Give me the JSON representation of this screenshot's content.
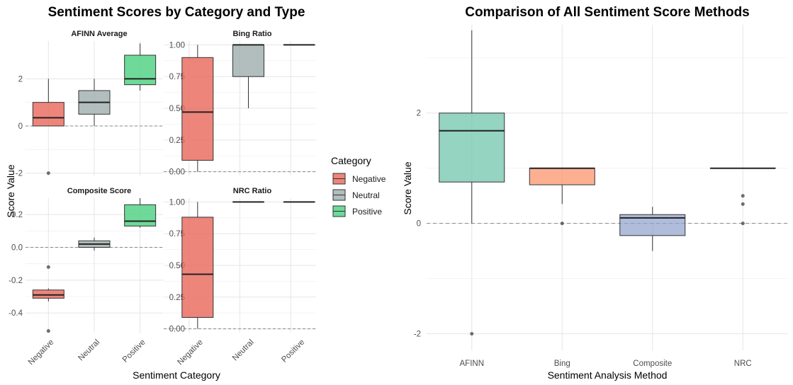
{
  "chart_data": [
    {
      "type": "boxplot",
      "title": "Sentiment Scores by Category and Type",
      "xlabel": "Sentiment Category",
      "ylabel": "Score Value",
      "legend": {
        "title": "Category",
        "placement": "right",
        "entries": [
          {
            "label": "Negative",
            "color": "#E8665A"
          },
          {
            "label": "Neutral",
            "color": "#9FAEAD"
          },
          {
            "label": "Positive",
            "color": "#4ACF7E"
          }
        ]
      },
      "categories": [
        "Negative",
        "Neutral",
        "Positive"
      ],
      "reference_line": 0,
      "panels": [
        {
          "name": "AFINN Average",
          "ylim": [
            -2.1,
            3.6
          ],
          "yticks": [
            -2,
            0,
            2
          ],
          "ytick_labels": [
            "-2",
            "0",
            "2"
          ],
          "boxes": [
            {
              "category": "Negative",
              "min": 0,
              "q1": 0,
              "median": 0.35,
              "q3": 1.0,
              "max": 2.0,
              "outliers": [
                -2.0
              ]
            },
            {
              "category": "Neutral",
              "min": 0,
              "q1": 0.5,
              "median": 1.0,
              "q3": 1.5,
              "max": 2.0,
              "outliers": []
            },
            {
              "category": "Positive",
              "min": 1.5,
              "q1": 1.75,
              "median": 2.0,
              "q3": 3.0,
              "max": 3.5,
              "outliers": []
            }
          ]
        },
        {
          "name": "Bing Ratio",
          "ylim": [
            -0.03,
            1.03
          ],
          "yticks": [
            0,
            0.25,
            0.5,
            0.75,
            1
          ],
          "ytick_labels": [
            "0.00",
            "0.25",
            "0.50",
            "0.75",
            "1.00"
          ],
          "boxes": [
            {
              "category": "Negative",
              "min": 0,
              "q1": 0.09,
              "median": 0.47,
              "q3": 0.9,
              "max": 1.0,
              "outliers": []
            },
            {
              "category": "Neutral",
              "min": 0.5,
              "q1": 0.75,
              "median": 1.0,
              "q3": 1.0,
              "max": 1.0,
              "outliers": []
            },
            {
              "category": "Positive",
              "min": 1.0,
              "q1": 1.0,
              "median": 1.0,
              "q3": 1.0,
              "max": 1.0,
              "outliers": []
            }
          ]
        },
        {
          "name": "Composite Score",
          "ylim": [
            -0.52,
            0.3
          ],
          "yticks": [
            -0.4,
            -0.2,
            0,
            0.2
          ],
          "ytick_labels": [
            "-0.4",
            "-0.2",
            "0.0",
            "0.2"
          ],
          "boxes": [
            {
              "category": "Negative",
              "min": -0.33,
              "q1": -0.31,
              "median": -0.29,
              "q3": -0.26,
              "max": -0.25,
              "outliers": [
                -0.12,
                -0.51
              ]
            },
            {
              "category": "Neutral",
              "min": -0.02,
              "q1": 0.0,
              "median": 0.02,
              "q3": 0.04,
              "max": 0.06,
              "outliers": []
            },
            {
              "category": "Positive",
              "min": 0.12,
              "q1": 0.13,
              "median": 0.16,
              "q3": 0.26,
              "max": 0.3,
              "outliers": []
            }
          ]
        },
        {
          "name": "NRC Ratio",
          "ylim": [
            -0.03,
            1.03
          ],
          "yticks": [
            0,
            0.25,
            0.5,
            0.75,
            1
          ],
          "ytick_labels": [
            "0.00",
            "0.25",
            "0.50",
            "0.75",
            "1.00"
          ],
          "boxes": [
            {
              "category": "Negative",
              "min": 0,
              "q1": 0.09,
              "median": 0.43,
              "q3": 0.88,
              "max": 1.0,
              "outliers": []
            },
            {
              "category": "Neutral",
              "min": 1.0,
              "q1": 1.0,
              "median": 1.0,
              "q3": 1.0,
              "max": 1.0,
              "outliers": []
            },
            {
              "category": "Positive",
              "min": 1.0,
              "q1": 1.0,
              "median": 1.0,
              "q3": 1.0,
              "max": 1.0,
              "outliers": []
            }
          ]
        }
      ]
    },
    {
      "type": "boxplot",
      "title": "Comparison of All Sentiment Score Methods",
      "xlabel": "Sentiment Analysis Method",
      "ylabel": "Score Value",
      "categories": [
        "AFINN",
        "Bing",
        "Composite",
        "NRC"
      ],
      "colors": [
        "#66C2A5",
        "#FC8D62",
        "#8DA0CB",
        "#E78AC3"
      ],
      "ylim": [
        -2.3,
        3.6
      ],
      "yticks": [
        -2,
        0,
        2
      ],
      "ytick_labels": [
        "-2",
        "0",
        "2"
      ],
      "reference_line": 0,
      "boxes": [
        {
          "category": "AFINN",
          "min": 0,
          "q1": 0.75,
          "median": 1.68,
          "q3": 2.0,
          "max": 3.5,
          "outliers": [
            -2.0
          ]
        },
        {
          "category": "Bing",
          "min": 0.35,
          "q1": 0.7,
          "median": 1.0,
          "q3": 1.0,
          "max": 1.0,
          "outliers": [
            0
          ]
        },
        {
          "category": "Composite",
          "min": -0.5,
          "q1": -0.22,
          "median": 0.1,
          "q3": 0.16,
          "max": 0.3,
          "outliers": []
        },
        {
          "category": "NRC",
          "min": 1.0,
          "q1": 1.0,
          "median": 1.0,
          "q3": 1.0,
          "max": 1.0,
          "outliers": [
            0.5,
            0.35,
            0
          ]
        }
      ]
    }
  ]
}
